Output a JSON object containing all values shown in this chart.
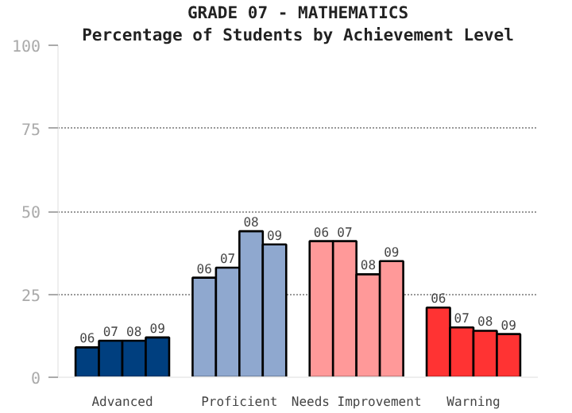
{
  "chart_data": {
    "type": "bar",
    "title": "GRADE 07 - MATHEMATICS",
    "subtitle": "Percentage of Students by Achievement Level",
    "categories": [
      "Advanced",
      "Proficient",
      "Needs Improvement",
      "Warning"
    ],
    "series": [
      {
        "name": "06",
        "colors": [
          "#003f7f",
          "#8fa8cf",
          "#ff9999",
          "#ff3333"
        ],
        "values": [
          9,
          30,
          41,
          21
        ]
      },
      {
        "name": "07",
        "colors": [
          "#003f7f",
          "#8fa8cf",
          "#ff9999",
          "#ff3333"
        ],
        "values": [
          11,
          33,
          41,
          15
        ]
      },
      {
        "name": "08",
        "colors": [
          "#003f7f",
          "#8fa8cf",
          "#ff9999",
          "#ff3333"
        ],
        "values": [
          11,
          44,
          31,
          14
        ]
      },
      {
        "name": "09",
        "colors": [
          "#003f7f",
          "#8fa8cf",
          "#ff9999",
          "#ff3333"
        ],
        "values": [
          12,
          40,
          35,
          13
        ]
      }
    ],
    "ylim": [
      0,
      100
    ],
    "yticks": [
      0,
      25,
      50,
      75,
      100
    ],
    "grid": "y"
  }
}
